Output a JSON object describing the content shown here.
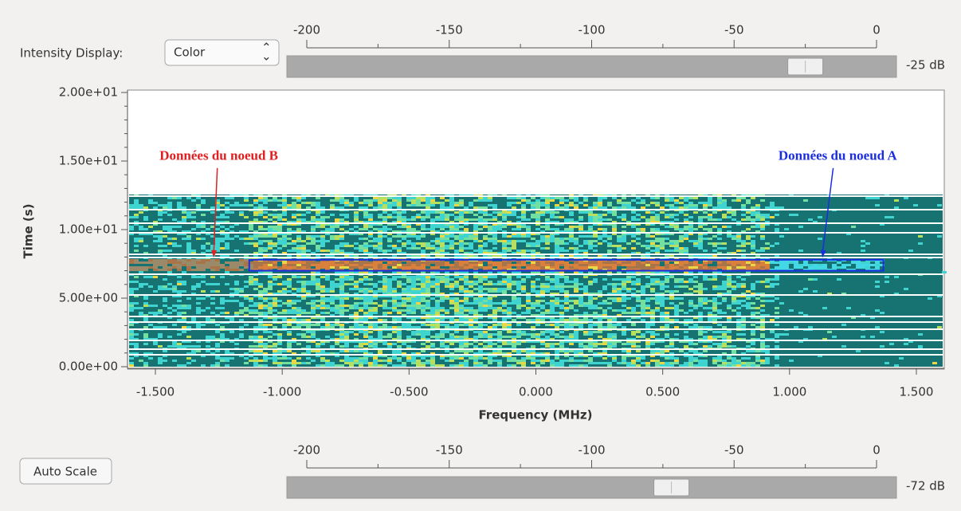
{
  "intensity_display": {
    "label": "Intensity Display:",
    "value": "Color"
  },
  "auto_scale": {
    "label": "Auto Scale"
  },
  "top_slider": {
    "lim": [
      -200,
      0
    ],
    "ticks": [
      -200,
      -150,
      -100,
      -50,
      0
    ],
    "value": -25,
    "value_label": "-25 dB"
  },
  "bottom_slider": {
    "lim": [
      -200,
      0
    ],
    "ticks": [
      -200,
      -150,
      -100,
      -50,
      0
    ],
    "value": -72,
    "value_label": "-72 dB"
  },
  "waterfall": {
    "xlabel": "Frequency (MHz)",
    "ylabel": "Time (s)",
    "xlim": [
      -1.61,
      1.61
    ],
    "ylim": [
      0,
      20
    ],
    "xticks": [
      {
        "value": -1.5,
        "label": "-1.500"
      },
      {
        "value": -1,
        "label": "-1.000"
      },
      {
        "value": -0.5,
        "label": "-0.500"
      },
      {
        "value": 0,
        "label": "0.000"
      },
      {
        "value": 0.5,
        "label": "0.500"
      },
      {
        "value": 1,
        "label": "1.000"
      },
      {
        "value": 1.5,
        "label": "1.500"
      }
    ],
    "yticks": [
      {
        "value": 0,
        "label": "0.00e+00"
      },
      {
        "value": 5,
        "label": "5.00e+00"
      },
      {
        "value": 10,
        "label": "1.00e+01"
      },
      {
        "value": 15,
        "label": "1.50e+01"
      },
      {
        "value": 20,
        "label": "2.00e+01"
      }
    ],
    "annotations": [
      {
        "text": "Données du noeud B",
        "color": "#e02020",
        "x": -1.25,
        "y": 15.3,
        "arrow_to": [
          -1.27,
          7.95
        ]
      },
      {
        "text": "Données du noeud A",
        "color": "#1a2ee0",
        "x": 1.19,
        "y": 15.3,
        "arrow_to": [
          1.13,
          7.95
        ]
      }
    ],
    "highlight": {
      "color": "#1a2ee0",
      "x": [
        -1.13,
        1.37
      ],
      "y": [
        7.0,
        7.8
      ]
    }
  }
}
